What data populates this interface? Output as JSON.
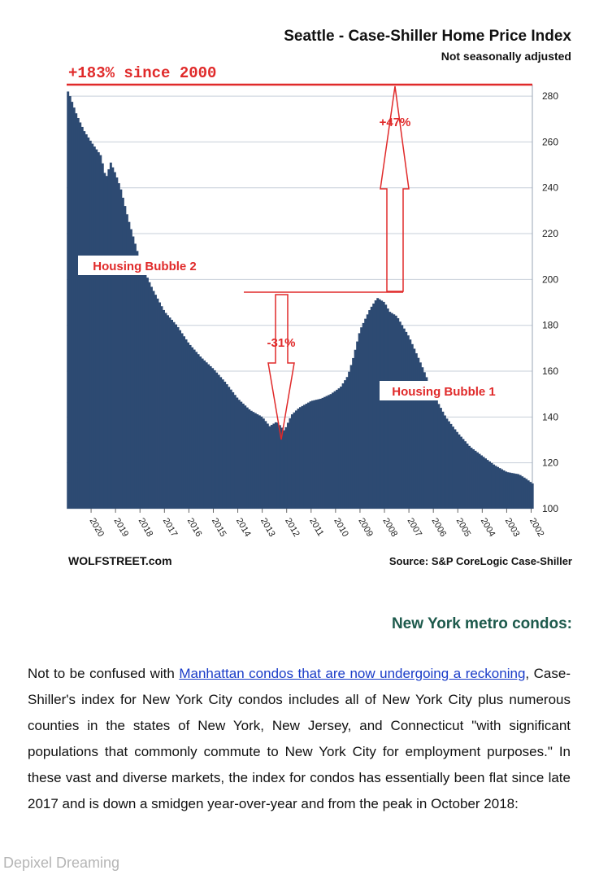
{
  "chart_data": {
    "type": "bar",
    "title": "Seattle - Case-Shiller Home Price Index",
    "subtitle": "Not seasonally adjusted",
    "ylim": [
      100,
      285
    ],
    "yticks": [
      100,
      120,
      140,
      160,
      180,
      200,
      220,
      240,
      260,
      280
    ],
    "xticks": [
      "2002",
      "2003",
      "2004",
      "2005",
      "2006",
      "2007",
      "2008",
      "2009",
      "2010",
      "2011",
      "2012",
      "2013",
      "2014",
      "2015",
      "2016",
      "2017",
      "2018",
      "2019",
      "2020"
    ],
    "grid": true,
    "source": "Source: S&P CoreLogic Case-Shiller",
    "brand": "WOLFSTREET.com",
    "annotations": {
      "since_2000": "+183% since 2000",
      "gain": "+47%",
      "drop": "-31%",
      "bubble2": "Housing Bubble 2",
      "bubble1": "Housing Bubble 1"
    },
    "anchor_points": [
      [
        2001.95,
        111
      ],
      [
        2002.2,
        113
      ],
      [
        2002.5,
        115
      ],
      [
        2003.0,
        116
      ],
      [
        2003.5,
        119
      ],
      [
        2004.0,
        123
      ],
      [
        2004.5,
        127
      ],
      [
        2005.0,
        133
      ],
      [
        2005.5,
        140
      ],
      [
        2006.0,
        150
      ],
      [
        2006.5,
        163
      ],
      [
        2007.0,
        175
      ],
      [
        2007.5,
        184
      ],
      [
        2007.8,
        186
      ],
      [
        2008.0,
        190
      ],
      [
        2008.3,
        192
      ],
      [
        2008.6,
        187
      ],
      [
        2009.0,
        178
      ],
      [
        2009.3,
        165
      ],
      [
        2009.5,
        158
      ],
      [
        2009.8,
        153
      ],
      [
        2010.2,
        150
      ],
      [
        2010.6,
        148
      ],
      [
        2011.0,
        147
      ],
      [
        2011.5,
        144
      ],
      [
        2011.8,
        141
      ],
      [
        2012.1,
        134
      ],
      [
        2012.4,
        138
      ],
      [
        2012.7,
        136
      ],
      [
        2013.0,
        140
      ],
      [
        2013.5,
        143
      ],
      [
        2014.0,
        148
      ],
      [
        2014.5,
        155
      ],
      [
        2015.0,
        161
      ],
      [
        2015.5,
        166
      ],
      [
        2016.0,
        172
      ],
      [
        2016.5,
        180
      ],
      [
        2017.0,
        186
      ],
      [
        2017.5,
        196
      ],
      [
        2018.0,
        208
      ],
      [
        2018.5,
        227
      ],
      [
        2018.8,
        240
      ],
      [
        2019.0,
        246
      ],
      [
        2019.2,
        251
      ],
      [
        2019.4,
        244
      ],
      [
        2019.6,
        254
      ],
      [
        2019.8,
        257
      ],
      [
        2020.0,
        260
      ],
      [
        2020.3,
        265
      ],
      [
        2020.6,
        272
      ],
      [
        2020.9,
        281
      ],
      [
        2021.0,
        283
      ]
    ]
  },
  "article": {
    "heading": "New York metro condos:",
    "p1_start": "Not to be confused with ",
    "p1_link": "Manhattan condos that are now undergoing a reckoning",
    "p1_rest": ", Case-Shiller's index for New York City condos includes all of New York City plus numerous counties in the states of New York, New Jersey, and Connecticut \"with significant populations that commonly commute to New York City for employment purposes.\" In these vast and diverse markets, the index for condos has essentially been flat since late 2017 and is down a smidgen year-over-year and from the peak in October 2018:"
  },
  "watermark": "Depixel Dreaming",
  "colors": {
    "bar": "#2d4a72",
    "accent": "#e02a2a",
    "heading": "#1d5a4c",
    "link": "#1a3cc8"
  }
}
